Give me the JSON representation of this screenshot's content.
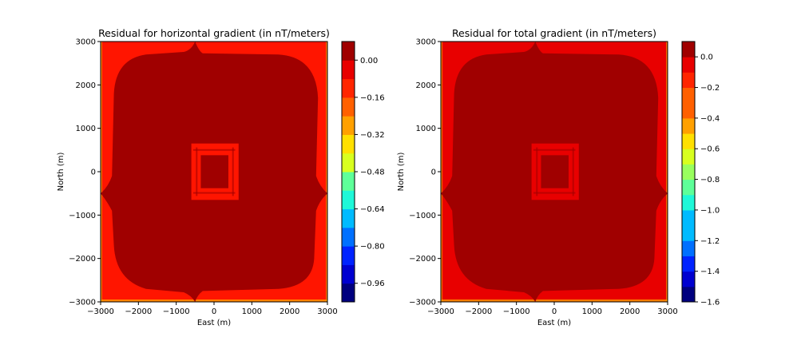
{
  "chart_data": [
    {
      "type": "heatmap",
      "title": "Residual for horizontal gradient (in nT/meters)",
      "xlabel": "East (m)",
      "ylabel": "North (m)",
      "xlim": [
        -3000,
        3000
      ],
      "ylim": [
        -3000,
        3000
      ],
      "xticks": [
        "−3000",
        "−2000",
        "−1000",
        "0",
        "1000",
        "2000",
        "3000"
      ],
      "yticks": [
        "−3000",
        "−2000",
        "−1000",
        "0",
        "1000",
        "2000",
        "3000"
      ],
      "regions": [
        {
          "level": "min",
          "shape": "outer frame (domain edge)",
          "value": -0.2,
          "color": "#ff1500"
        },
        {
          "level": "max",
          "shape": "large rounded interior square",
          "value": 0.04,
          "color": "#a00000"
        },
        {
          "level": "min",
          "shape": "hollow square ring near center, approx ±500 m",
          "value": -0.06,
          "color": "#ff1500"
        },
        {
          "level": "max",
          "shape": "inner square core, approx ±300 m",
          "value": 0.04,
          "color": "#a00000"
        }
      ],
      "colorbar": {
        "levels": [
          -1.04,
          -0.96,
          -0.88,
          -0.8,
          -0.72,
          -0.64,
          -0.56,
          -0.48,
          -0.4,
          -0.32,
          -0.24,
          -0.16,
          -0.08,
          0.0,
          0.08
        ],
        "tick_values": [
          -0.96,
          -0.8,
          -0.64,
          -0.48,
          -0.32,
          -0.16,
          0.0
        ],
        "tick_labels": [
          "−0.96",
          "−0.80",
          "−0.64",
          "−0.48",
          "−0.32",
          "−0.16",
          "0.00"
        ]
      }
    },
    {
      "type": "heatmap",
      "title": "Residual for total gradient (in nT/meters)",
      "xlabel": "East (m)",
      "ylabel": "North (m)",
      "xlim": [
        -3000,
        3000
      ],
      "ylim": [
        -3000,
        3000
      ],
      "xticks": [
        "−3000",
        "−2000",
        "−1000",
        "0",
        "1000",
        "2000",
        "3000"
      ],
      "yticks": [
        "−3000",
        "−2000",
        "−1000",
        "0",
        "1000",
        "2000",
        "3000"
      ],
      "regions": [
        {
          "level": "min",
          "shape": "outer frame (domain edge)",
          "value": -0.15,
          "color": "#e80000"
        },
        {
          "level": "max",
          "shape": "large rounded interior square",
          "value": 0.05,
          "color": "#a00000"
        },
        {
          "level": "min",
          "shape": "hollow square ring near center, approx ±500 m",
          "value": -0.05,
          "color": "#e80000"
        },
        {
          "level": "max",
          "shape": "inner square core, approx ±300 m",
          "value": 0.05,
          "color": "#a00000"
        }
      ],
      "colorbar": {
        "levels": [
          -1.6,
          -1.5,
          -1.4,
          -1.3,
          -1.2,
          -1.1,
          -1.0,
          -0.9,
          -0.8,
          -0.7,
          -0.6,
          -0.5,
          -0.4,
          -0.3,
          -0.2,
          -0.1,
          0.0,
          0.1
        ],
        "tick_values": [
          -1.6,
          -1.4,
          -1.2,
          -1.0,
          -0.8,
          -0.6,
          -0.4,
          -0.2,
          0.0
        ],
        "tick_labels": [
          "−1.6",
          "−1.4",
          "−1.2",
          "−1.0",
          "−0.8",
          "−0.6",
          "−0.4",
          "−0.2",
          "0.0"
        ]
      }
    }
  ],
  "colors": {
    "jet": [
      "#00007f",
      "#0000d0",
      "#0023ff",
      "#0070ff",
      "#00bbff",
      "#1ff8d8",
      "#5eff99",
      "#99ff5e",
      "#d8ff1f",
      "#ffe000",
      "#ffa000",
      "#ff6000",
      "#ff2500",
      "#e80000",
      "#a00000"
    ]
  }
}
